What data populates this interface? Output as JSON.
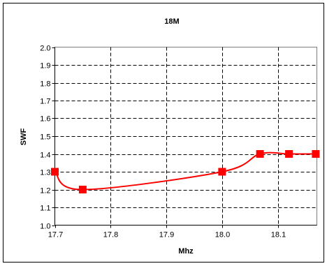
{
  "chart_data": {
    "type": "line",
    "title": "18M",
    "xlabel": "Mhz",
    "ylabel": "SWF",
    "xlim": [
      17.7,
      18.17
    ],
    "ylim": [
      1.0,
      2.0
    ],
    "x_ticks": [
      "17.7",
      "17.8",
      "17.9",
      "18.0",
      "18.1"
    ],
    "y_ticks": [
      "1.0",
      "1.1",
      "1.2",
      "1.3",
      "1.4",
      "1.5",
      "1.6",
      "1.7",
      "1.8",
      "1.9",
      "2.0"
    ],
    "grid": "dashed",
    "legend": "none",
    "series": [
      {
        "color": "#ff0000",
        "marker": "square",
        "smooth": true,
        "points": [
          {
            "x": 17.7,
            "y": 1.3
          },
          {
            "x": 17.75,
            "y": 1.2
          },
          {
            "x": 18.0,
            "y": 1.3
          },
          {
            "x": 18.068,
            "y": 1.4
          },
          {
            "x": 18.12,
            "y": 1.4
          },
          {
            "x": 18.168,
            "y": 1.4
          }
        ]
      }
    ]
  }
}
